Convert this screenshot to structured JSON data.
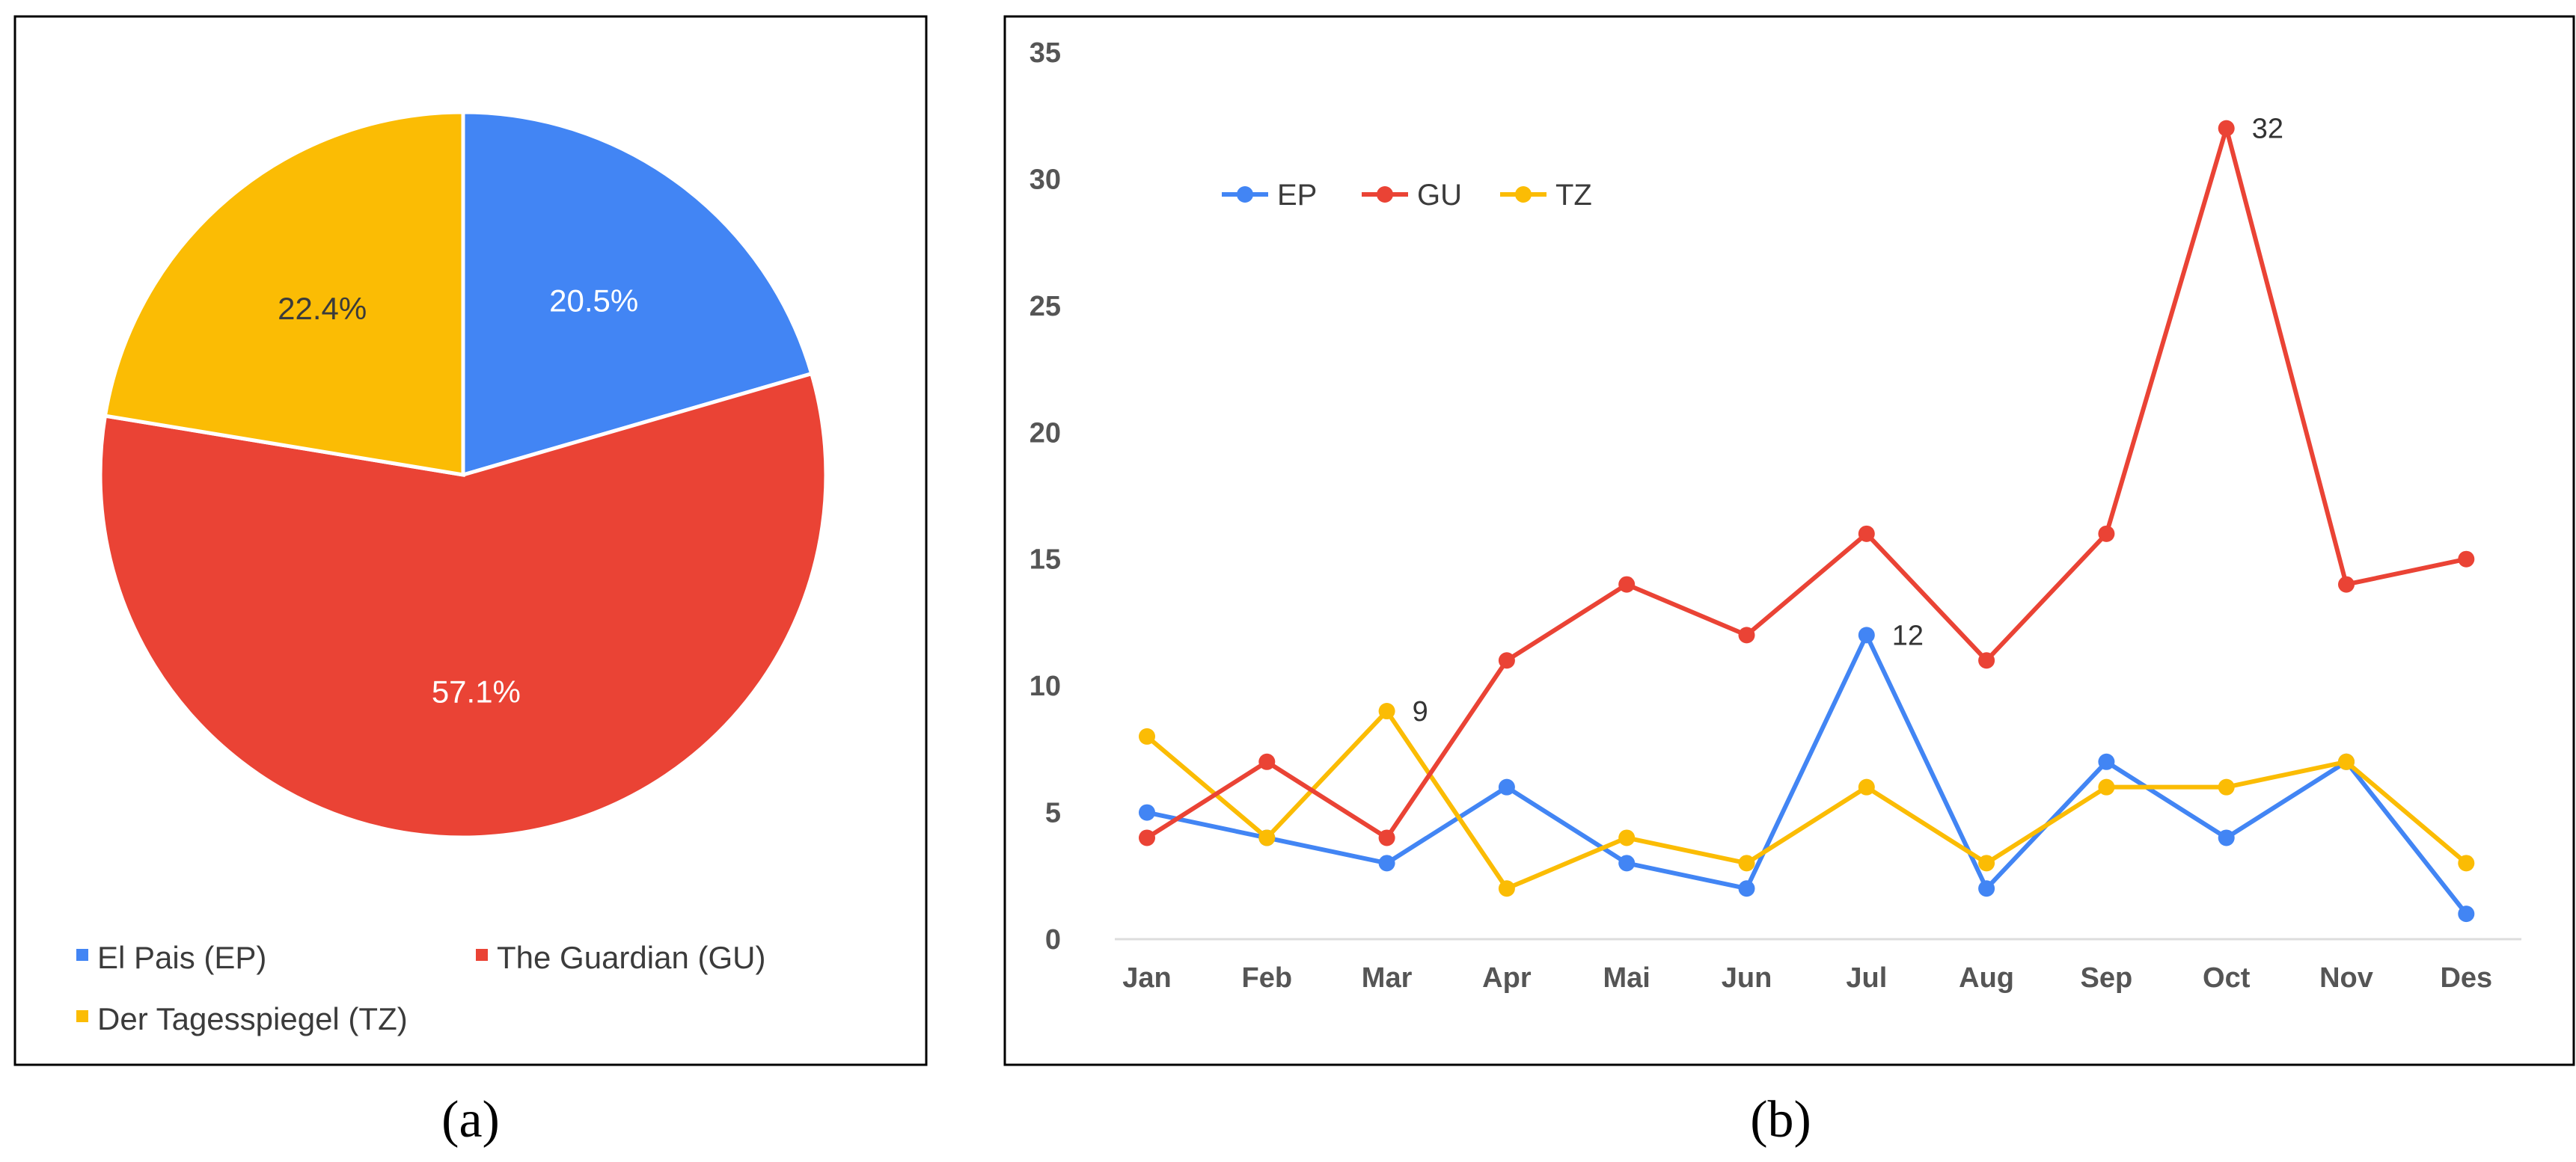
{
  "captions": {
    "a": "(a)",
    "b": "(b)"
  },
  "colors": {
    "EP": "#4285F4",
    "GU": "#EA4335",
    "TZ": "#FBBC04"
  },
  "chart_data": [
    {
      "type": "pie",
      "slices": [
        {
          "key": "EP",
          "name": "El Pais (EP)",
          "value": 20.5,
          "label": "20.5%"
        },
        {
          "key": "GU",
          "name": "The Guardian (GU)",
          "value": 57.1,
          "label": "57.1%"
        },
        {
          "key": "TZ",
          "name": "Der Tagesspiegel (TZ)",
          "value": 22.4,
          "label": "22.4%"
        }
      ],
      "legend_position": "bottom"
    },
    {
      "type": "line",
      "categories": [
        "Jan",
        "Feb",
        "Mar",
        "Apr",
        "Mai",
        "Jun",
        "Jul",
        "Aug",
        "Sep",
        "Oct",
        "Nov",
        "Des"
      ],
      "series": [
        {
          "key": "EP",
          "name": "EP",
          "values": [
            5,
            4,
            3,
            6,
            3,
            2,
            12,
            2,
            7,
            4,
            7,
            1
          ]
        },
        {
          "key": "GU",
          "name": "GU",
          "values": [
            4,
            7,
            4,
            11,
            14,
            12,
            16,
            11,
            16,
            32,
            14,
            15
          ]
        },
        {
          "key": "TZ",
          "name": "TZ",
          "values": [
            8,
            4,
            9,
            2,
            4,
            3,
            6,
            3,
            6,
            6,
            7,
            3
          ]
        }
      ],
      "yticks": [
        "0",
        "5",
        "10",
        "15",
        "20",
        "25",
        "30",
        "35"
      ],
      "ylim": [
        0,
        35
      ],
      "annotations": [
        {
          "series": "TZ",
          "index": 2,
          "label": "9"
        },
        {
          "series": "EP",
          "index": 6,
          "label": "12"
        },
        {
          "series": "GU",
          "index": 9,
          "label": "32"
        }
      ],
      "legend_position": "top-left",
      "grid": false
    }
  ]
}
